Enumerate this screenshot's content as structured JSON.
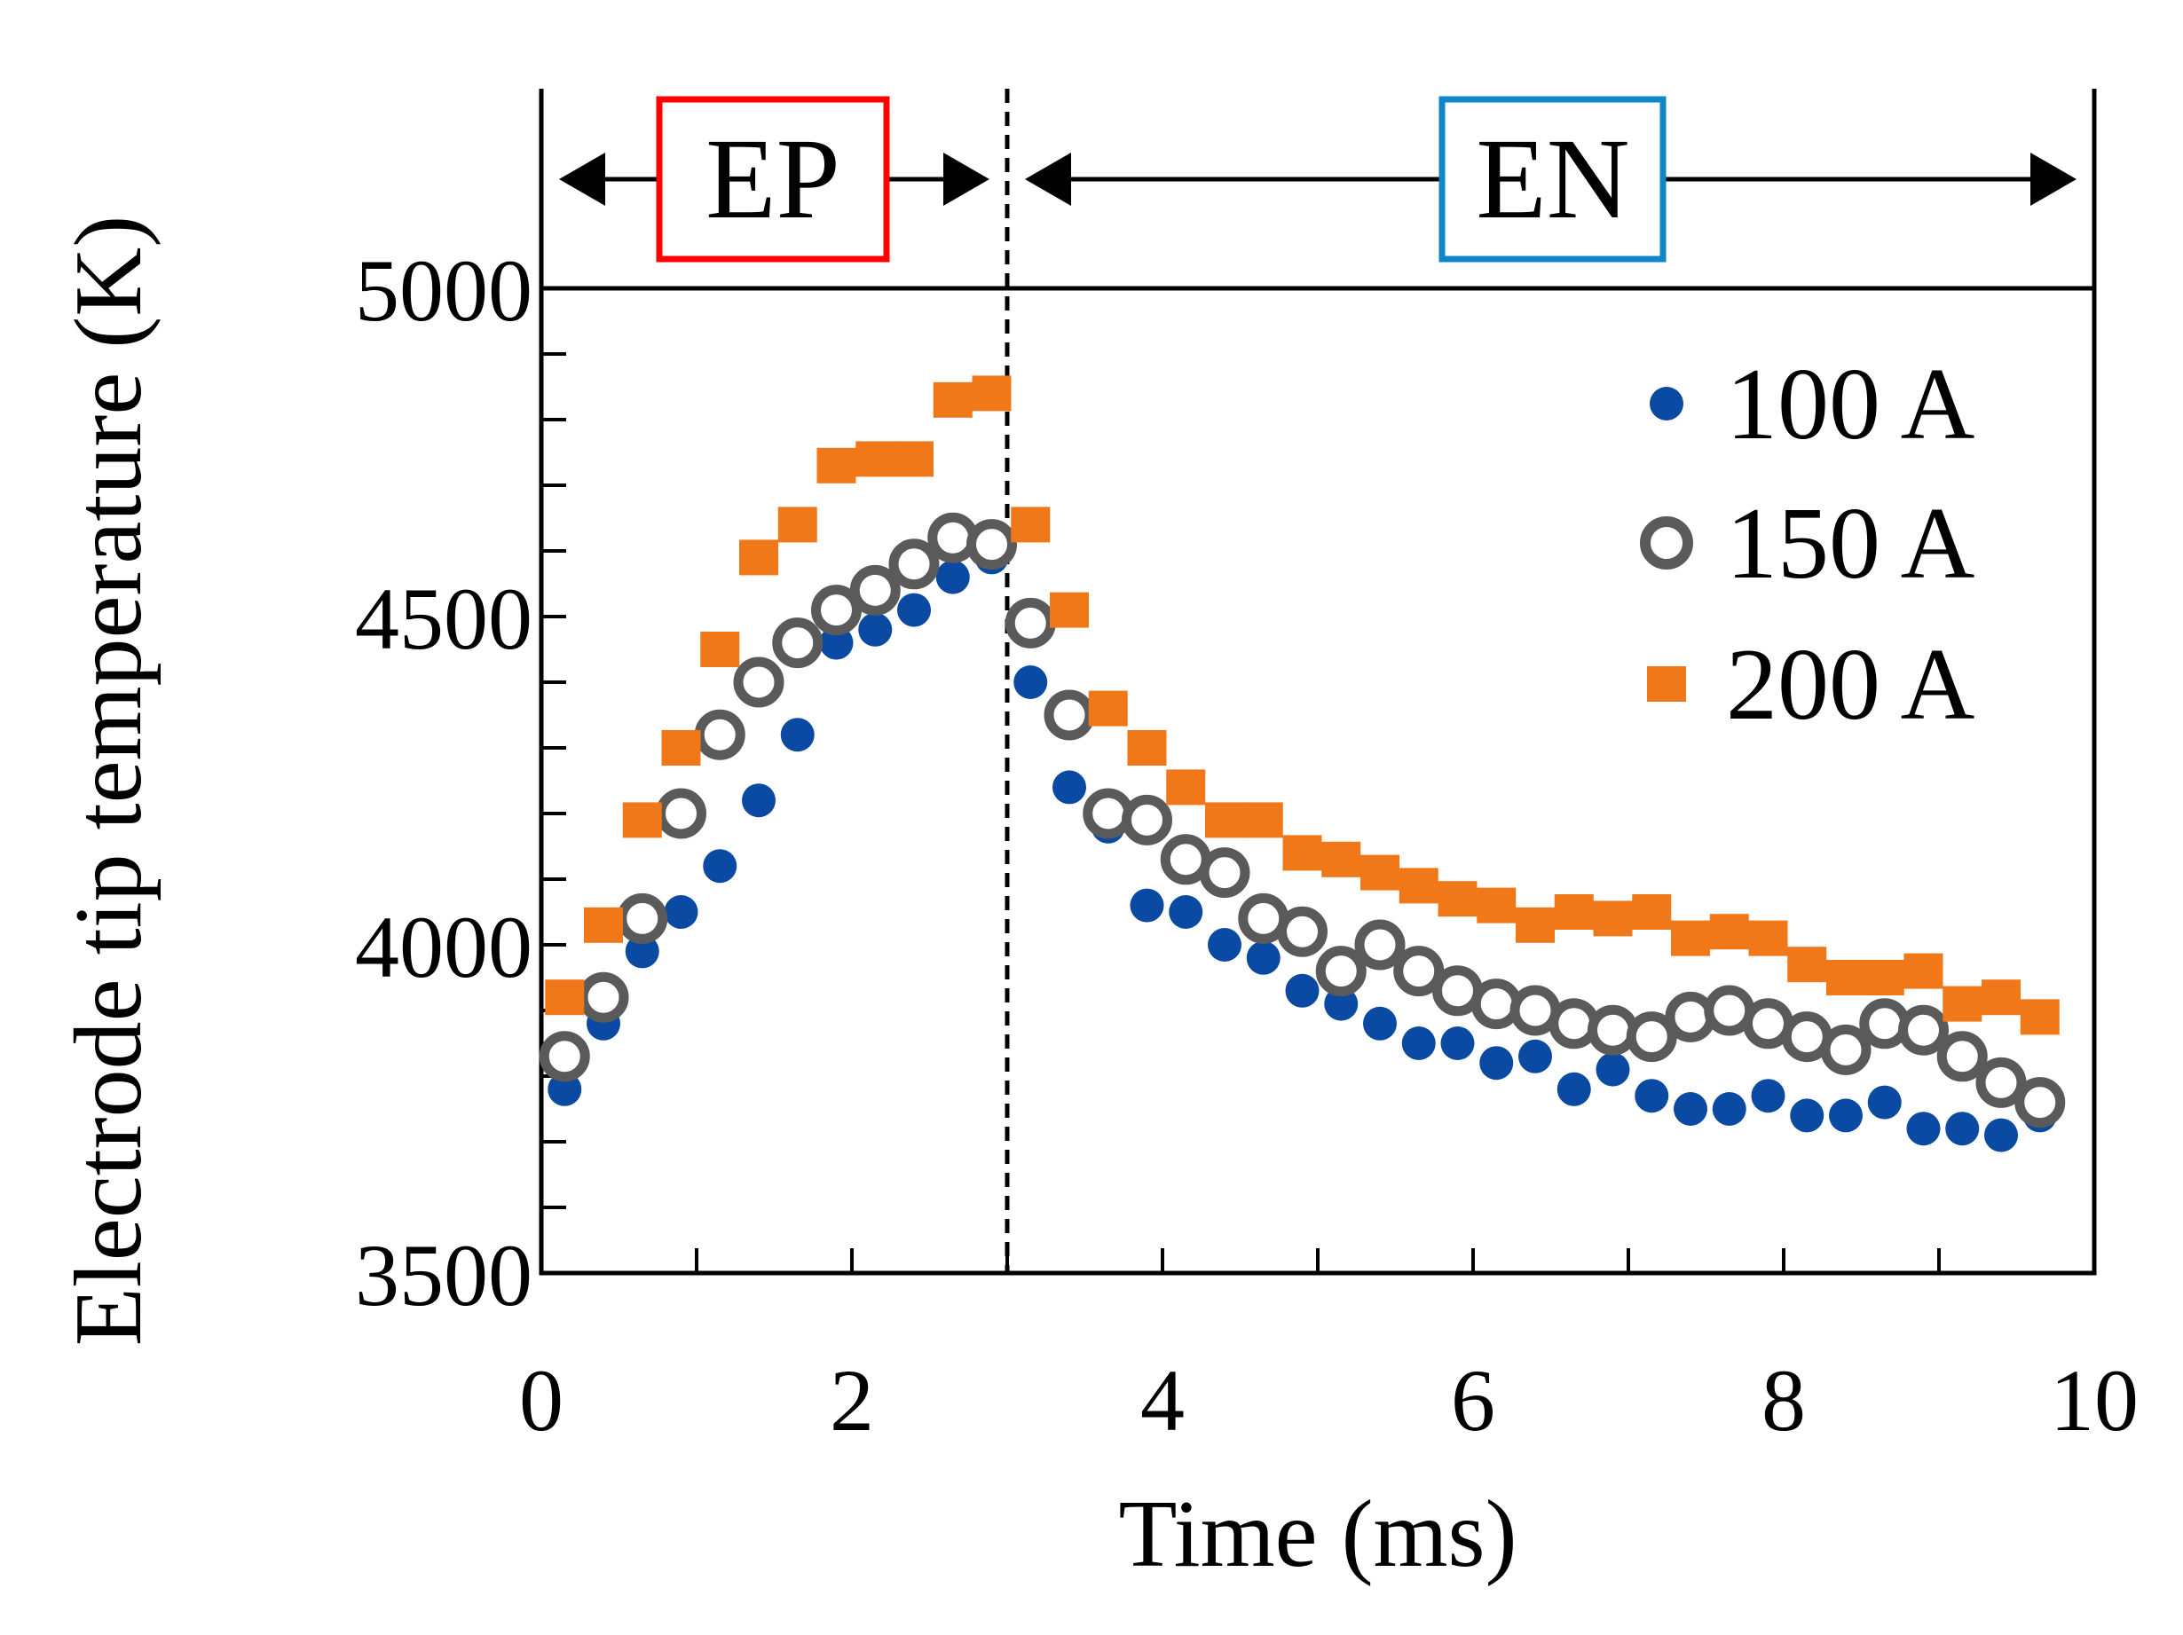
{
  "chart_data": {
    "type": "scatter",
    "xlabel": "Time (ms)",
    "ylabel": "Electrode tip temperature (K)",
    "xlim": [
      0,
      10
    ],
    "ylim": [
      3500,
      5000
    ],
    "xticks": [
      0,
      2,
      4,
      6,
      8,
      10
    ],
    "yticks": [
      3500,
      4000,
      4500,
      5000
    ],
    "y_minor_step": 100,
    "x_minor_step": 1,
    "polarity_switch_time": 3,
    "regions": [
      {
        "label": "EP",
        "start": 0,
        "end": 3,
        "box_color": "#ff0000"
      },
      {
        "label": "EN",
        "start": 3,
        "end": 10,
        "box_color": "#0f86c8"
      }
    ],
    "legend_position": "top-right",
    "x": [
      0.15,
      0.4,
      0.65,
      0.9,
      1.15,
      1.4,
      1.65,
      1.9,
      2.15,
      2.4,
      2.65,
      2.9,
      3.15,
      3.4,
      3.65,
      3.9,
      4.15,
      4.4,
      4.65,
      4.9,
      5.15,
      5.4,
      5.65,
      5.9,
      6.15,
      6.4,
      6.65,
      6.9,
      7.15,
      7.4,
      7.65,
      7.9,
      8.15,
      8.4,
      8.65,
      8.9,
      9.15,
      9.4,
      9.65
    ],
    "series": [
      {
        "name": "100 A",
        "marker": "filled-circle",
        "color": "#0b4aa2",
        "values": [
          3780,
          3880,
          3990,
          4050,
          4120,
          4220,
          4320,
          4460,
          4480,
          4510,
          4560,
          4590,
          4400,
          4240,
          4180,
          4060,
          4050,
          4000,
          3980,
          3930,
          3910,
          3880,
          3850,
          3850,
          3820,
          3830,
          3780,
          3810,
          3770,
          3750,
          3750,
          3770,
          3740,
          3740,
          3760,
          3720,
          3720,
          3710,
          3740
        ]
      },
      {
        "name": "150 A",
        "marker": "open-circle",
        "color": "#5a5a5a",
        "values": [
          3830,
          3920,
          4040,
          4200,
          4320,
          4400,
          4460,
          4510,
          4540,
          4580,
          4620,
          4610,
          4490,
          4350,
          4200,
          4190,
          4130,
          4110,
          4040,
          4020,
          3960,
          4000,
          3960,
          3930,
          3910,
          3900,
          3880,
          3870,
          3860,
          3890,
          3900,
          3880,
          3860,
          3840,
          3880,
          3870,
          3830,
          3790,
          3760
        ]
      },
      {
        "name": "200 A",
        "marker": "filled-square",
        "color": "#f07818",
        "values": [
          3920,
          4030,
          4190,
          4300,
          4450,
          4590,
          4640,
          4730,
          4740,
          4740,
          4830,
          4840,
          4640,
          4510,
          4360,
          4300,
          4240,
          4190,
          4190,
          4140,
          4130,
          4110,
          4090,
          4070,
          4060,
          4030,
          4050,
          4040,
          4050,
          4010,
          4020,
          4010,
          3970,
          3950,
          3950,
          3960,
          3910,
          3920,
          3890
        ]
      }
    ]
  }
}
